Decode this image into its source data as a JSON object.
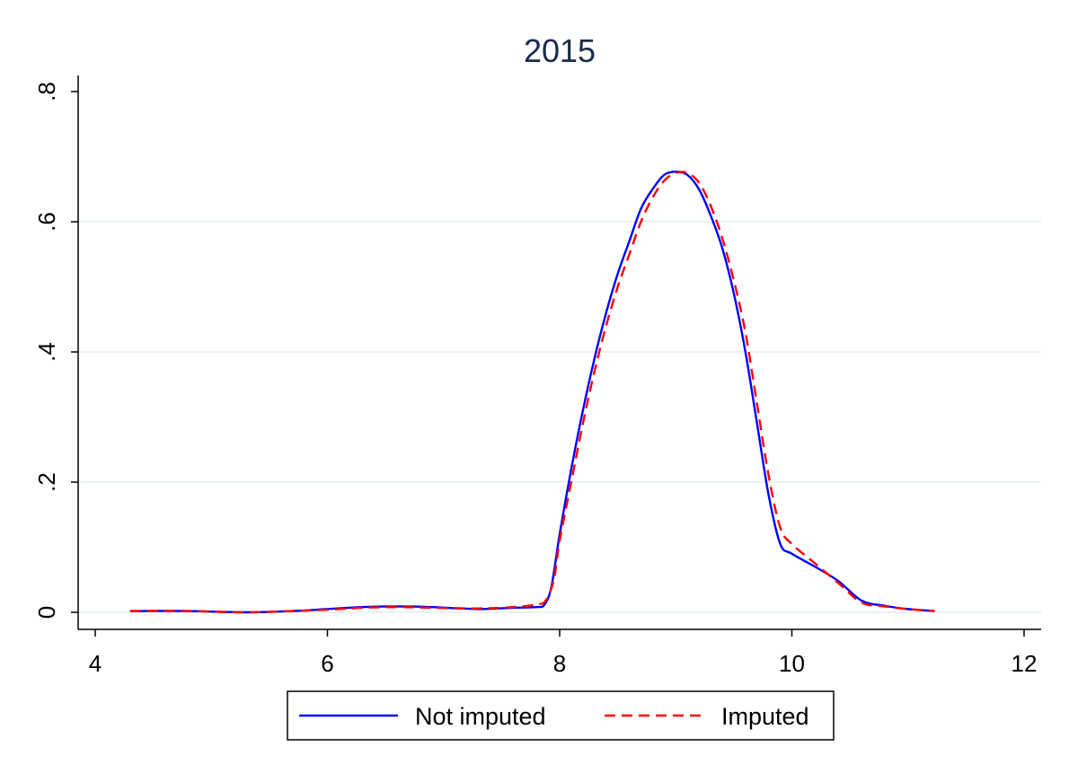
{
  "chart_data": {
    "type": "line",
    "title": "2015",
    "xlabel": "",
    "ylabel": "",
    "xlim": [
      4,
      12
    ],
    "ylim": [
      0,
      0.8
    ],
    "x_ticks": [
      {
        "value": 4,
        "label": "4"
      },
      {
        "value": 6,
        "label": "6"
      },
      {
        "value": 8,
        "label": "8"
      },
      {
        "value": 10,
        "label": "10"
      },
      {
        "value": 12,
        "label": "12"
      }
    ],
    "y_ticks": [
      {
        "value": 0,
        "label": "0"
      },
      {
        "value": 0.2,
        "label": ".2"
      },
      {
        "value": 0.4,
        "label": ".4"
      },
      {
        "value": 0.6,
        "label": ".6"
      },
      {
        "value": 0.8,
        "label": ".8"
      }
    ],
    "grid": true,
    "legend_position": "bottom",
    "series": [
      {
        "name": "Not imputed",
        "color": "#0000ff",
        "style": "solid",
        "points": [
          [
            4.3,
            0.002
          ],
          [
            4.8,
            0.002
          ],
          [
            5.3,
            0.0
          ],
          [
            5.7,
            0.002
          ],
          [
            6.0,
            0.005
          ],
          [
            6.3,
            0.008
          ],
          [
            6.6,
            0.009
          ],
          [
            6.9,
            0.008
          ],
          [
            7.3,
            0.005
          ],
          [
            7.6,
            0.007
          ],
          [
            7.8,
            0.008
          ],
          [
            7.87,
            0.012
          ],
          [
            7.93,
            0.04
          ],
          [
            8.0,
            0.12
          ],
          [
            8.1,
            0.22
          ],
          [
            8.2,
            0.31
          ],
          [
            8.3,
            0.39
          ],
          [
            8.4,
            0.46
          ],
          [
            8.5,
            0.52
          ],
          [
            8.6,
            0.57
          ],
          [
            8.7,
            0.62
          ],
          [
            8.8,
            0.65
          ],
          [
            8.9,
            0.672
          ],
          [
            9.0,
            0.677
          ],
          [
            9.1,
            0.672
          ],
          [
            9.2,
            0.65
          ],
          [
            9.3,
            0.61
          ],
          [
            9.4,
            0.56
          ],
          [
            9.5,
            0.49
          ],
          [
            9.6,
            0.4
          ],
          [
            9.7,
            0.29
          ],
          [
            9.8,
            0.18
          ],
          [
            9.9,
            0.105
          ],
          [
            10.0,
            0.09
          ],
          [
            10.2,
            0.07
          ],
          [
            10.4,
            0.048
          ],
          [
            10.6,
            0.018
          ],
          [
            10.8,
            0.01
          ],
          [
            11.0,
            0.005
          ],
          [
            11.23,
            0.002
          ]
        ]
      },
      {
        "name": "Imputed",
        "color": "#ff0000",
        "style": "dashed",
        "points": [
          [
            4.3,
            0.002
          ],
          [
            4.8,
            0.002
          ],
          [
            5.3,
            0.0
          ],
          [
            5.7,
            0.002
          ],
          [
            6.0,
            0.004
          ],
          [
            6.3,
            0.007
          ],
          [
            6.6,
            0.008
          ],
          [
            6.9,
            0.007
          ],
          [
            7.3,
            0.006
          ],
          [
            7.6,
            0.008
          ],
          [
            7.8,
            0.012
          ],
          [
            7.88,
            0.018
          ],
          [
            7.95,
            0.05
          ],
          [
            8.0,
            0.11
          ],
          [
            8.1,
            0.2
          ],
          [
            8.2,
            0.29
          ],
          [
            8.3,
            0.37
          ],
          [
            8.4,
            0.44
          ],
          [
            8.5,
            0.5
          ],
          [
            8.6,
            0.55
          ],
          [
            8.7,
            0.6
          ],
          [
            8.8,
            0.637
          ],
          [
            8.9,
            0.663
          ],
          [
            9.0,
            0.675
          ],
          [
            9.1,
            0.675
          ],
          [
            9.2,
            0.66
          ],
          [
            9.3,
            0.625
          ],
          [
            9.4,
            0.575
          ],
          [
            9.5,
            0.51
          ],
          [
            9.6,
            0.43
          ],
          [
            9.7,
            0.32
          ],
          [
            9.8,
            0.21
          ],
          [
            9.9,
            0.13
          ],
          [
            10.0,
            0.105
          ],
          [
            10.2,
            0.075
          ],
          [
            10.4,
            0.045
          ],
          [
            10.6,
            0.015
          ],
          [
            10.8,
            0.009
          ],
          [
            11.0,
            0.005
          ],
          [
            11.23,
            0.002
          ]
        ]
      }
    ]
  }
}
